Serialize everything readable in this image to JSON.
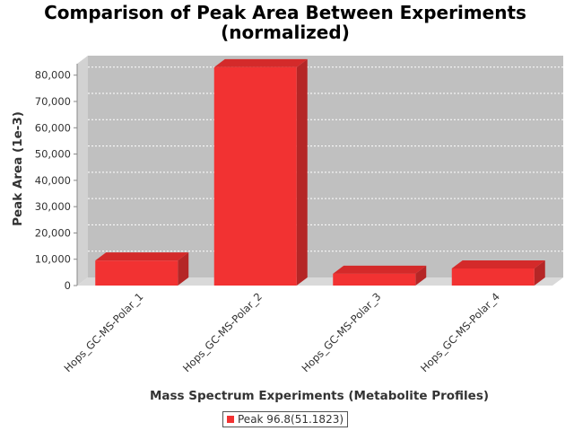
{
  "chart_data": {
    "type": "bar",
    "title_lines": [
      "Comparison of Peak Area Between Experiments",
      "(normalized)"
    ],
    "xlabel": "Mass Spectrum Experiments (Metabolite Profiles)",
    "ylabel": "Peak Area (1e-3)",
    "categories": [
      "Hops_GC-MS-Polar_1",
      "Hops_GC-MS-Polar_2",
      "Hops_GC-MS-Polar_3",
      "Hops_GC-MS-Polar_4"
    ],
    "series": [
      {
        "name": "Peak 96.8(51.1823)",
        "values": [
          9500,
          83000,
          4500,
          6500
        ]
      }
    ],
    "ylim": [
      0,
      88000
    ],
    "yticks": [
      0,
      10000,
      20000,
      30000,
      40000,
      50000,
      60000,
      70000,
      80000
    ],
    "ytick_labels": [
      "0",
      "10,000",
      "20,000",
      "30,000",
      "40,000",
      "50,000",
      "60,000",
      "70,000",
      "80,000"
    ],
    "grid": true,
    "legend_position": "bottom-center",
    "colors": {
      "bar_front": "#f23232",
      "bar_top": "#d42a2a",
      "bar_side": "#b52626",
      "plot_background": "#c0c0c0",
      "floor": "#d9d9d9",
      "gridline": "#ffffff"
    }
  }
}
